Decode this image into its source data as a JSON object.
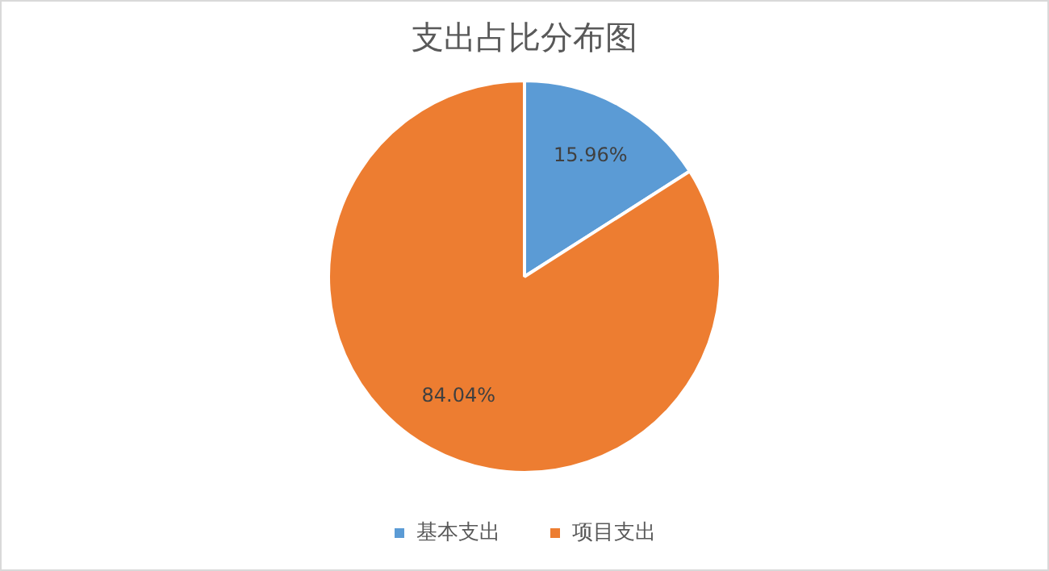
{
  "chart_data": {
    "type": "pie",
    "title": "支出占比分布图",
    "categories": [
      "基本支出",
      "项目支出"
    ],
    "values": [
      15.96,
      84.04
    ],
    "colors": [
      "#5b9bd5",
      "#ed7d31"
    ],
    "value_labels": [
      "15.96%",
      "84.04%"
    ],
    "legend": "bottom"
  }
}
